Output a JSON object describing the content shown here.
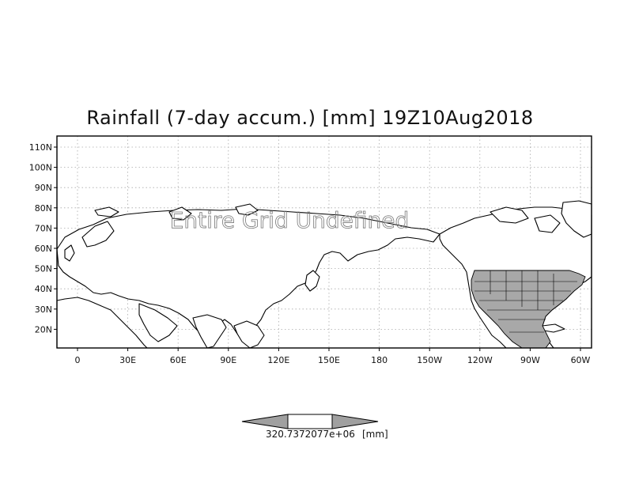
{
  "title": "Rainfall (7-day accum.) [mm] 19Z10Aug2018",
  "overlay_text": "Entire Grid Undefined",
  "lat_labels": [
    "110N",
    "100N",
    "90N",
    "80N",
    "70N",
    "60N",
    "50N",
    "40N",
    "30N",
    "20N"
  ],
  "lon_labels": [
    "0",
    "30E",
    "60E",
    "90E",
    "120E",
    "150E",
    "180",
    "150W",
    "120W",
    "90W",
    "60W"
  ],
  "colorbar": {
    "value_label": "320.7372077e+06",
    "unit_label": "[mm]",
    "fill_color": "#a0a0a0"
  },
  "colors": {
    "land_shade": "#a8a8a8",
    "grid": "#aaaaaa",
    "coast": "#000000"
  }
}
